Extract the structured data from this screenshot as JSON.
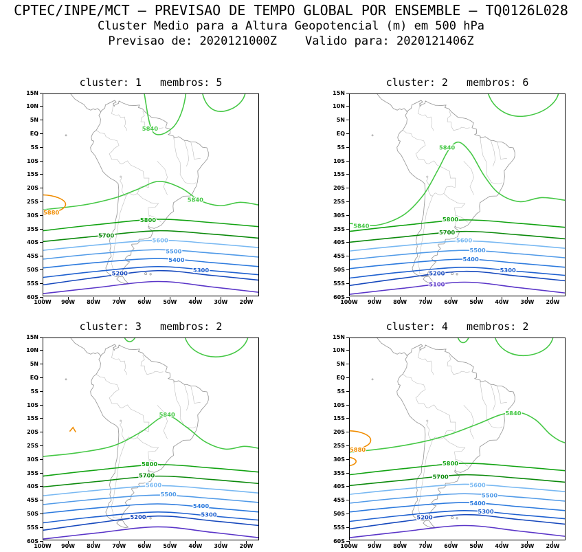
{
  "header": {
    "line1": "CPTEC/INPE/MCT — PREVISAO DE TEMPO GLOBAL POR ENSEMBLE — TQ0126L028",
    "line2": "Cluster Medio para a Altura Geopotencial (m) em 500 hPa",
    "line3": "Previsao de: 2020121000Z    Valido para: 2020121406Z"
  },
  "chart_data": {
    "type": "contour-map",
    "organization": "CPTEC/INPE/MCT",
    "product": "PREVISAO DE TEMPO GLOBAL POR ENSEMBLE",
    "model_resolution": "TQ0126L028",
    "title": "Cluster Medio para a Altura Geopotencial (m) em 500 hPa",
    "variable": "Altura Geopotencial",
    "units": "m",
    "pressure_level_hPa": 500,
    "init_time": "2020121000Z",
    "valid_time": "2020121406Z",
    "map_region": {
      "lon_west": 100,
      "lon_east": 15,
      "lat_north": 15,
      "lat_south": -60
    },
    "lon_ticks": [
      "100W",
      "90W",
      "80W",
      "70W",
      "60W",
      "50W",
      "40W",
      "30W",
      "20W"
    ],
    "lat_ticks": [
      "15N",
      "10N",
      "5N",
      "EQ",
      "5S",
      "10S",
      "15S",
      "20S",
      "25S",
      "30S",
      "35S",
      "40S",
      "45S",
      "50S",
      "55S",
      "60S"
    ],
    "levels": [
      {
        "value": 5880,
        "color": "#f08c00"
      },
      {
        "value": 5840,
        "color": "#46c846"
      },
      {
        "value": 5800,
        "color": "#12a312"
      },
      {
        "value": 5700,
        "color": "#0c8a0c"
      },
      {
        "value": 5600,
        "color": "#78b8f2"
      },
      {
        "value": 5500,
        "color": "#509ae8"
      },
      {
        "value": 5400,
        "color": "#2c7ade"
      },
      {
        "value": 5300,
        "color": "#1e60d0"
      },
      {
        "value": 5200,
        "color": "#1648bd"
      },
      {
        "value": 5100,
        "color": "#5a35c8"
      }
    ],
    "panels": [
      {
        "cluster": 1,
        "membros": 5,
        "title": "cluster: 1   membros: 5",
        "contour_labels": [
          {
            "level": 5880,
            "lon_w": 99.5,
            "lat": -29
          },
          {
            "level": 5840,
            "lon_w": 57.8,
            "lat": 2
          },
          {
            "level": 5840,
            "lon_w": 40.0,
            "lat": -24.3
          },
          {
            "level": 5800,
            "lon_w": 58.6,
            "lat": -31.8
          },
          {
            "level": 5700,
            "lon_w": 75.0,
            "lat": -37.5
          },
          {
            "level": 5600,
            "lon_w": 53.8,
            "lat": -39.3
          },
          {
            "level": 5500,
            "lon_w": 48.5,
            "lat": -43.3
          },
          {
            "level": 5400,
            "lon_w": 47.4,
            "lat": -46.5
          },
          {
            "level": 5300,
            "lon_w": 37.8,
            "lat": -50.3
          },
          {
            "level": 5200,
            "lon_w": 69.7,
            "lat": -51.5
          }
        ]
      },
      {
        "cluster": 2,
        "membros": 6,
        "title": "cluster: 2   membros: 6",
        "contour_labels": [
          {
            "level": 5840,
            "lon_w": 95.2,
            "lat": -34
          },
          {
            "level": 5840,
            "lon_w": 61.5,
            "lat": -5
          },
          {
            "level": 5800,
            "lon_w": 60.2,
            "lat": -31.5
          },
          {
            "level": 5700,
            "lon_w": 61.5,
            "lat": -36.3
          },
          {
            "level": 5600,
            "lon_w": 54.8,
            "lat": -39.3
          },
          {
            "level": 5500,
            "lon_w": 49.5,
            "lat": -43
          },
          {
            "level": 5400,
            "lon_w": 52.2,
            "lat": -46.3
          },
          {
            "level": 5300,
            "lon_w": 37.6,
            "lat": -50.3
          },
          {
            "level": 5200,
            "lon_w": 65.5,
            "lat": -51.5
          },
          {
            "level": 5100,
            "lon_w": 65.5,
            "lat": -55.5
          }
        ]
      },
      {
        "cluster": 3,
        "membros": 2,
        "title": "cluster: 3   membros: 2",
        "contour_labels": [
          {
            "level": 5840,
            "lon_w": 51.1,
            "lat": -13.5
          },
          {
            "level": 5800,
            "lon_w": 58.0,
            "lat": -31.8
          },
          {
            "level": 5700,
            "lon_w": 59.1,
            "lat": -36
          },
          {
            "level": 5600,
            "lon_w": 56.4,
            "lat": -39.5
          },
          {
            "level": 5500,
            "lon_w": 50.6,
            "lat": -43
          },
          {
            "level": 5400,
            "lon_w": 37.8,
            "lat": -47.3
          },
          {
            "level": 5300,
            "lon_w": 34.7,
            "lat": -50.5
          },
          {
            "level": 5200,
            "lon_w": 62.5,
            "lat": -51.3
          }
        ]
      },
      {
        "cluster": 4,
        "membros": 2,
        "title": "cluster: 4   membros: 2",
        "contour_labels": [
          {
            "level": 5880,
            "lon_w": 99.5,
            "lat": -26.5
          },
          {
            "level": 5840,
            "lon_w": 35.5,
            "lat": -13
          },
          {
            "level": 5800,
            "lon_w": 60.2,
            "lat": -31.5
          },
          {
            "level": 5700,
            "lon_w": 64.1,
            "lat": -36.5
          },
          {
            "level": 5600,
            "lon_w": 49.5,
            "lat": -39.5
          },
          {
            "level": 5500,
            "lon_w": 44.8,
            "lat": -43.3
          },
          {
            "level": 5400,
            "lon_w": 49.5,
            "lat": -46.3
          },
          {
            "level": 5300,
            "lon_w": 46.3,
            "lat": -49.3
          },
          {
            "level": 5200,
            "lon_w": 70.3,
            "lat": -51.5
          }
        ]
      }
    ]
  }
}
